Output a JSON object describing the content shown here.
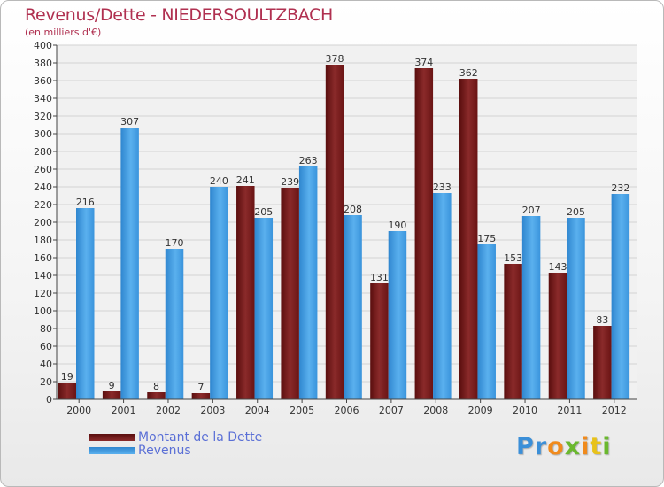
{
  "header": {
    "title": "Revenus/Dette - NIEDERSOULTZBACH",
    "subtitle": "(en milliers d'€)"
  },
  "legend": {
    "items": [
      {
        "label": "Montant de la Dette",
        "color": "#7a1a1a"
      },
      {
        "label": "Revenus",
        "color": "#3a9ee6"
      }
    ]
  },
  "logo": {
    "text": "Proxiti",
    "letters": [
      {
        "ch": "P",
        "color": "#3b8fd8"
      },
      {
        "ch": "r",
        "color": "#3b8fd8"
      },
      {
        "ch": "o",
        "color": "#f08a1c"
      },
      {
        "ch": "x",
        "color": "#6ab82e"
      },
      {
        "ch": "i",
        "color": "#f08a1c"
      },
      {
        "ch": "t",
        "color": "#e8c21a"
      },
      {
        "ch": "i",
        "color": "#6ab82e"
      }
    ]
  },
  "chart_data": {
    "type": "bar",
    "title": "Revenus/Dette - NIEDERSOULTZBACH",
    "ylabel": "(en milliers d'€)",
    "ylim": [
      0,
      400
    ],
    "yticks": [
      0,
      20,
      40,
      60,
      80,
      100,
      120,
      140,
      160,
      180,
      200,
      220,
      240,
      260,
      280,
      300,
      320,
      340,
      360,
      380,
      400
    ],
    "grid": true,
    "legend_position": "bottom-left",
    "categories": [
      "2000",
      "2001",
      "2002",
      "2003",
      "2004",
      "2005",
      "2006",
      "2007",
      "2008",
      "2009",
      "2010",
      "2011",
      "2012"
    ],
    "series": [
      {
        "name": "Montant de la Dette",
        "color": "#7a1a1a",
        "values": [
          19,
          9,
          8,
          7,
          241,
          239,
          378,
          131,
          374,
          362,
          153,
          143,
          83
        ]
      },
      {
        "name": "Revenus",
        "color": "#3a9ee6",
        "values": [
          216,
          307,
          170,
          240,
          205,
          263,
          208,
          190,
          233,
          175,
          207,
          205,
          232
        ]
      }
    ]
  }
}
